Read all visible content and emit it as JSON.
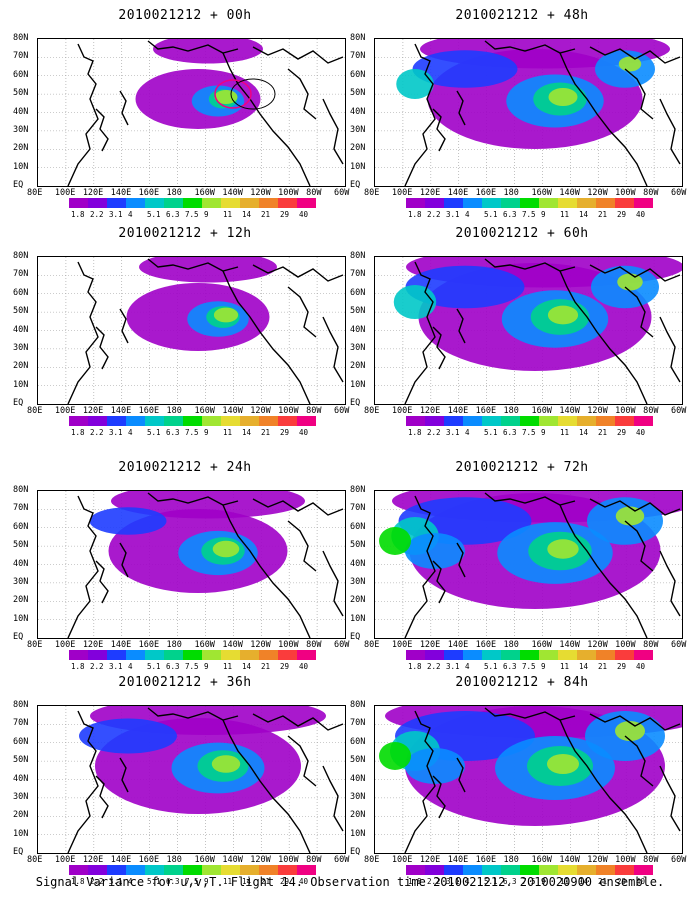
{
  "panels": [
    {
      "title": "2010021212 + 00h",
      "level": 0
    },
    {
      "title": "2010021212 + 12h",
      "level": 1
    },
    {
      "title": "2010021212 + 24h",
      "level": 2
    },
    {
      "title": "2010021212 + 36h",
      "level": 3
    },
    {
      "title": "2010021212 + 48h",
      "level": 4
    },
    {
      "title": "2010021212 + 60h",
      "level": 5
    },
    {
      "title": "2010021212 + 72h",
      "level": 6
    },
    {
      "title": "2010021212 + 84h",
      "level": 7
    }
  ],
  "y_ticks": [
    "80N",
    "70N",
    "60N",
    "50N",
    "40N",
    "30N",
    "20N",
    "10N",
    "EQ"
  ],
  "x_ticks": [
    "80E",
    "100E",
    "120E",
    "140E",
    "160E",
    "180",
    "160W",
    "140W",
    "120W",
    "100W",
    "80W",
    "60W"
  ],
  "colorbar_labels": [
    "1.8",
    "2.2",
    "3.1",
    "4",
    "5.1",
    "6.3",
    "7.5",
    "9",
    "11",
    "14",
    "21",
    "29",
    "40"
  ],
  "colorbar_colors": [
    "#a000c8",
    "#8200dc",
    "#1e3cff",
    "#0a8cff",
    "#00c8c8",
    "#00d28c",
    "#00dc00",
    "#a0e632",
    "#e6dc32",
    "#e6af2d",
    "#f08228",
    "#fa3c3c",
    "#f00082"
  ],
  "caption": "Signal Variance for u,v,T. Flight 14. Observation time 2010021212. 2010020900 ensemble."
}
